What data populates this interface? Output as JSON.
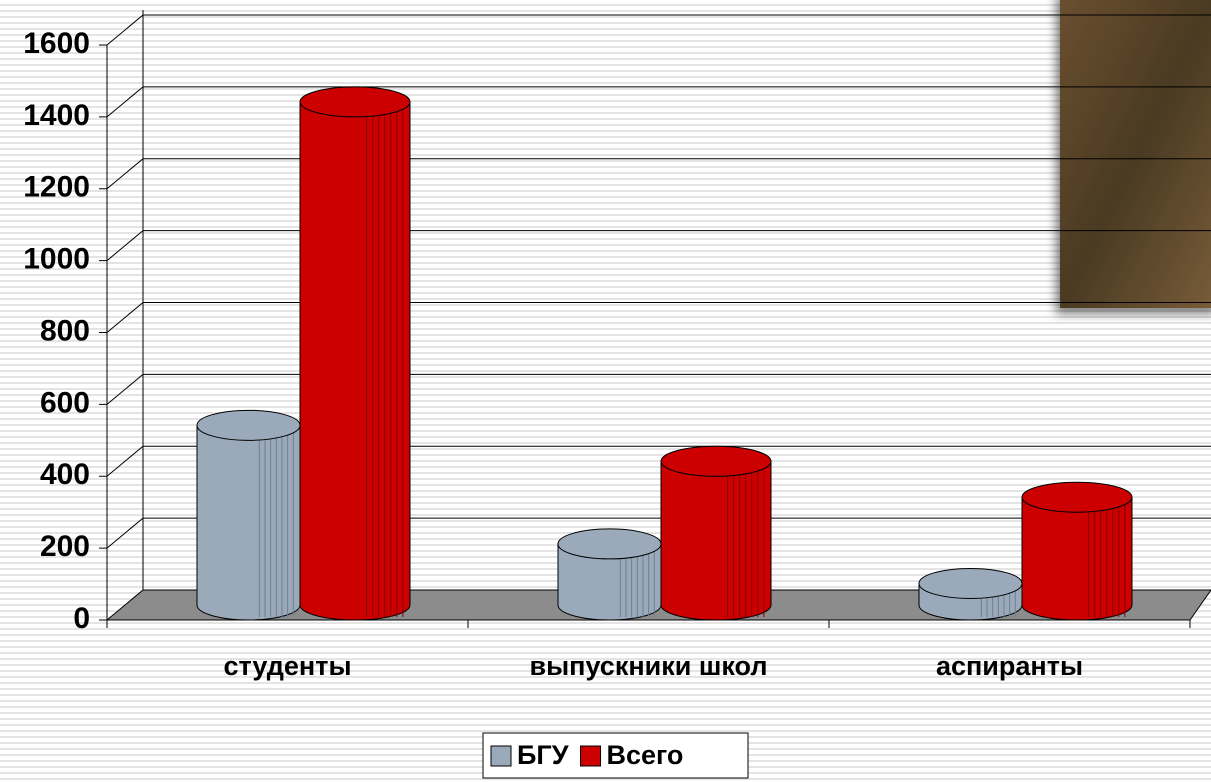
{
  "chart_data": {
    "type": "bar3d",
    "categories": [
      "студенты",
      "выпускники школ",
      "аспиранты"
    ],
    "series": [
      {
        "name": "БГУ",
        "color": "#9aaabb",
        "values": [
          500,
          170,
          60
        ]
      },
      {
        "name": "Всего",
        "color": "#cc0000",
        "values": [
          1400,
          400,
          300
        ]
      }
    ],
    "ylim": [
      0,
      1600
    ],
    "yticks": [
      0,
      200,
      400,
      600,
      800,
      1000,
      1200,
      1400,
      1600
    ],
    "grid": true,
    "legend": "bottom"
  }
}
